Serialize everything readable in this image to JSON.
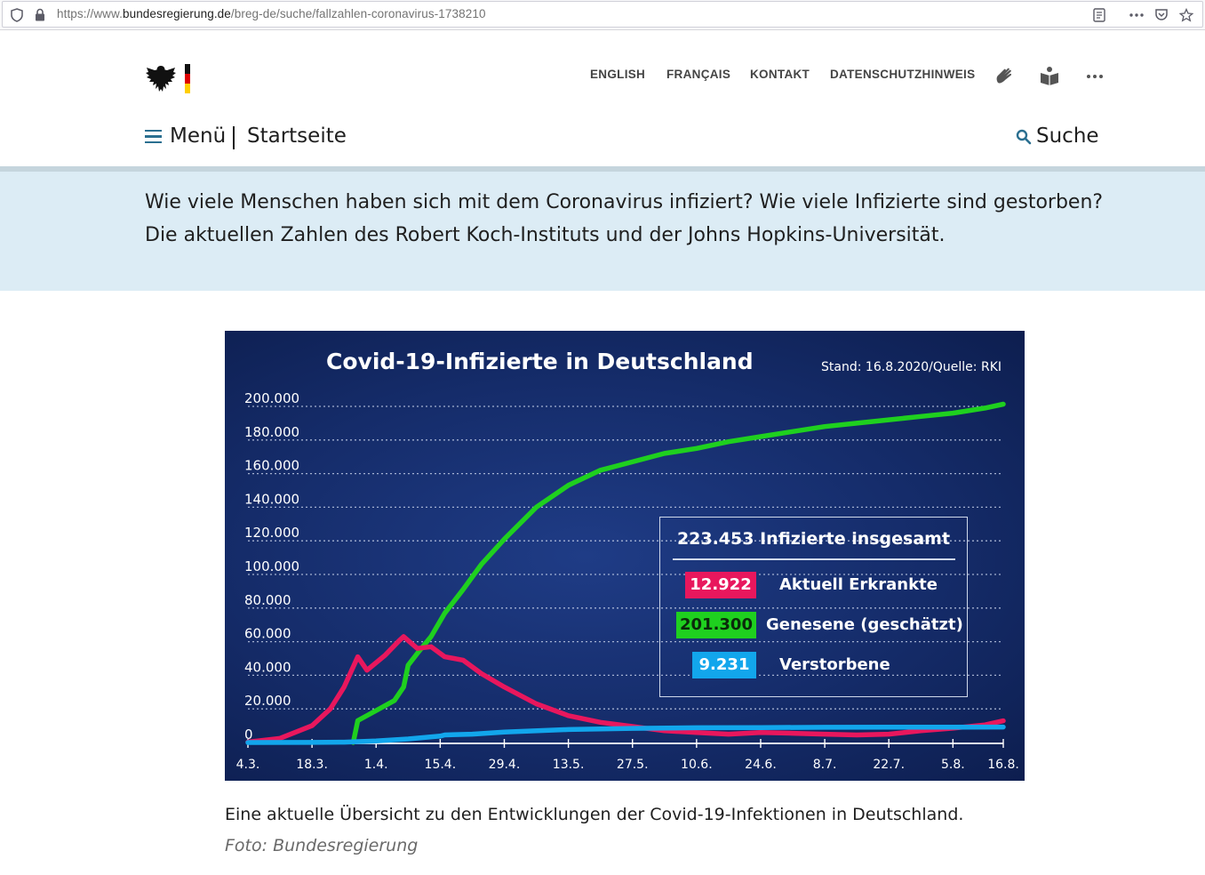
{
  "browser": {
    "url_prefix": "https://www.",
    "url_domain": "bundesregierung.de",
    "url_path": "/breg-de/suche/fallzahlen-coronavirus-1738210"
  },
  "header": {
    "nav": [
      "ENGLISH",
      "FRANÇAIS",
      "KONTAKT",
      "DATENSCHUTZHINWEIS"
    ],
    "menu_label": "Menü",
    "home_label": "Startseite",
    "search_label": "Suche",
    "icons": [
      "sign-language-icon",
      "easy-language-icon",
      "more-icon"
    ]
  },
  "intro": {
    "text": "Wie viele Menschen haben sich mit dem Coronavirus infiziert? Wie viele Infizierte sind gestorben? Die aktuellen Zahlen des Robert Koch-Instituts und der Johns Hopkins-Universität."
  },
  "chart_data": {
    "type": "line",
    "title": "Covid-19-Infizierte in Deutschland",
    "subtitle": "Stand: 16.8.2020/Quelle: RKI",
    "x_ticks": [
      "4.3.",
      "18.3.",
      "1.4.",
      "15.4.",
      "29.4.",
      "13.5.",
      "27.5.",
      "10.6.",
      "24.6.",
      "8.7.",
      "22.7.",
      "5.8.",
      "16.8."
    ],
    "y_ticks": [
      "200.000",
      "180.000",
      "160.000",
      "140.000",
      "120.000",
      "100.000",
      "80.000",
      "60.000",
      "40.000",
      "20.000",
      "0"
    ],
    "ylim": [
      0,
      200000
    ],
    "grid": true,
    "colors": {
      "aktuell": "#e8175d",
      "genesene": "#1fd01f",
      "verstorbene": "#12a6ec"
    },
    "series": [
      {
        "name": "Aktuell Erkrankte",
        "color": "#e8175d",
        "x": [
          "4.3.",
          "11.3.",
          "18.3.",
          "22.3.",
          "25.3.",
          "28.3.",
          "30.3.",
          "3.4.",
          "6.4.",
          "7.4.",
          "10.4.",
          "13.4.",
          "16.4.",
          "20.4.",
          "24.4.",
          "29.4.",
          "6.5.",
          "13.5.",
          "20.5.",
          "27.5.",
          "3.6.",
          "10.6.",
          "17.6.",
          "24.6.",
          "1.7.",
          "8.7.",
          "15.7.",
          "22.7.",
          "29.7.",
          "5.8.",
          "12.8.",
          "16.8."
        ],
        "values": [
          250,
          2500,
          10000,
          20000,
          33000,
          51000,
          43000,
          52000,
          60500,
          63000,
          56000,
          57000,
          51000,
          49000,
          41000,
          33000,
          23000,
          16000,
          12000,
          9500,
          7000,
          6000,
          5000,
          6000,
          5500,
          5000,
          4500,
          5000,
          7000,
          8500,
          10500,
          12922
        ]
      },
      {
        "name": "Genesene (geschätzt)",
        "color": "#1fd01f",
        "x": [
          "27.3.",
          "28.3.",
          "1.4.",
          "5.4.",
          "7.4.",
          "8.4.",
          "10.4.",
          "13.4.",
          "16.4.",
          "20.4.",
          "24.4.",
          "29.4.",
          "6.5.",
          "13.5.",
          "20.5.",
          "27.5.",
          "3.6.",
          "10.6.",
          "17.6.",
          "24.6.",
          "1.7.",
          "8.7.",
          "15.7.",
          "22.7.",
          "29.7.",
          "5.8.",
          "12.8.",
          "16.8."
        ],
        "values": [
          0,
          13000,
          19000,
          25000,
          33000,
          46000,
          53000,
          63000,
          77000,
          91000,
          106000,
          121000,
          140000,
          153000,
          162000,
          167000,
          172000,
          175000,
          179000,
          182000,
          185000,
          188000,
          190000,
          192000,
          194000,
          196000,
          199000,
          201300
        ]
      },
      {
        "name": "Verstorbene",
        "color": "#12a6ec",
        "x": [
          "4.3.",
          "18.3.",
          "25.3.",
          "1.4.",
          "8.4.",
          "15.4.",
          "16.4.",
          "22.4.",
          "29.4.",
          "13.5.",
          "27.5.",
          "10.6.",
          "24.6.",
          "8.7.",
          "22.7.",
          "5.8.",
          "16.8."
        ],
        "values": [
          0,
          30,
          200,
          900,
          2100,
          3800,
          4500,
          5000,
          6200,
          7700,
          8400,
          8800,
          8900,
          9050,
          9100,
          9160,
          9231
        ]
      }
    ]
  },
  "legend": {
    "total": "223.453 Infizierte insgesamt",
    "rows": [
      {
        "value": "12.922",
        "label": "Aktuell Erkrankte",
        "color": "#e8175d"
      },
      {
        "value": "201.300",
        "label": "Genesene (geschätzt)",
        "color": "#1fd01f"
      },
      {
        "value": "9.231",
        "label": "Verstorbene",
        "color": "#12a6ec"
      }
    ]
  },
  "caption": "Eine aktuelle Übersicht zu den Entwicklungen der Covid-19-Infektionen in Deutschland.",
  "credit": "Foto: Bundesregierung"
}
